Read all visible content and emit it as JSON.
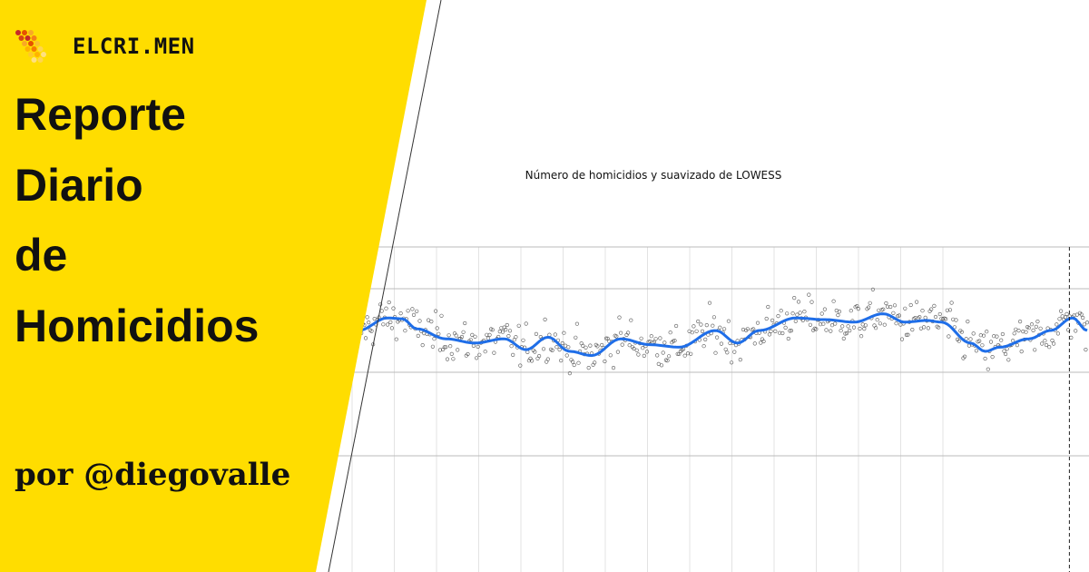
{
  "brand": {
    "name": "ELCRI.MEN",
    "logo_icon": "honeycomb-logo-icon"
  },
  "title_lines": [
    "Reporte",
    "Diario",
    "de",
    "Homicidios"
  ],
  "byline": "por @diegovalle",
  "colors": {
    "panel_yellow": "#FFDD00",
    "smooth_line": "#1F6EE8",
    "points": "#555555",
    "grid": "#BBBBBB",
    "minor_grid": "#E3E3E3"
  },
  "chart_data": {
    "type": "scatter",
    "title": "Número de homicidios y suavizado de LOWESS",
    "xlabel": "",
    "ylabel": "",
    "x": [
      0,
      500
    ],
    "ylim": [
      0.95,
      1.25
    ],
    "gridlines_y": [
      1.0,
      1.1,
      1.2
    ],
    "x_gridlines": 15,
    "vline_x": 499,
    "smooth": {
      "name": "",
      "x": [
        0,
        20,
        30,
        40,
        60,
        80,
        100,
        115,
        130,
        145,
        160,
        180,
        200,
        220,
        245,
        260,
        275,
        300,
        320,
        340,
        360,
        375,
        390,
        400,
        420,
        430,
        440,
        460,
        475,
        490,
        500
      ],
      "y": [
        1.15,
        1.165,
        1.164,
        1.152,
        1.14,
        1.135,
        1.14,
        1.127,
        1.142,
        1.125,
        1.12,
        1.14,
        1.133,
        1.13,
        1.15,
        1.135,
        1.15,
        1.165,
        1.163,
        1.16,
        1.17,
        1.16,
        1.162,
        1.16,
        1.135,
        1.125,
        1.13,
        1.14,
        1.15,
        1.165,
        1.15
      ],
      "mean_for_points": [
        1.15,
        1.165,
        1.164,
        1.152,
        1.14,
        1.135,
        1.14,
        1.127,
        1.142,
        1.125,
        1.12,
        1.14,
        1.133,
        1.13,
        1.15,
        1.135,
        1.15,
        1.165,
        1.163,
        1.16,
        1.17,
        1.16,
        1.162,
        1.16,
        1.135,
        1.125,
        1.13,
        1.14,
        1.15,
        1.165,
        1.15
      ]
    },
    "points_note": ""
  }
}
